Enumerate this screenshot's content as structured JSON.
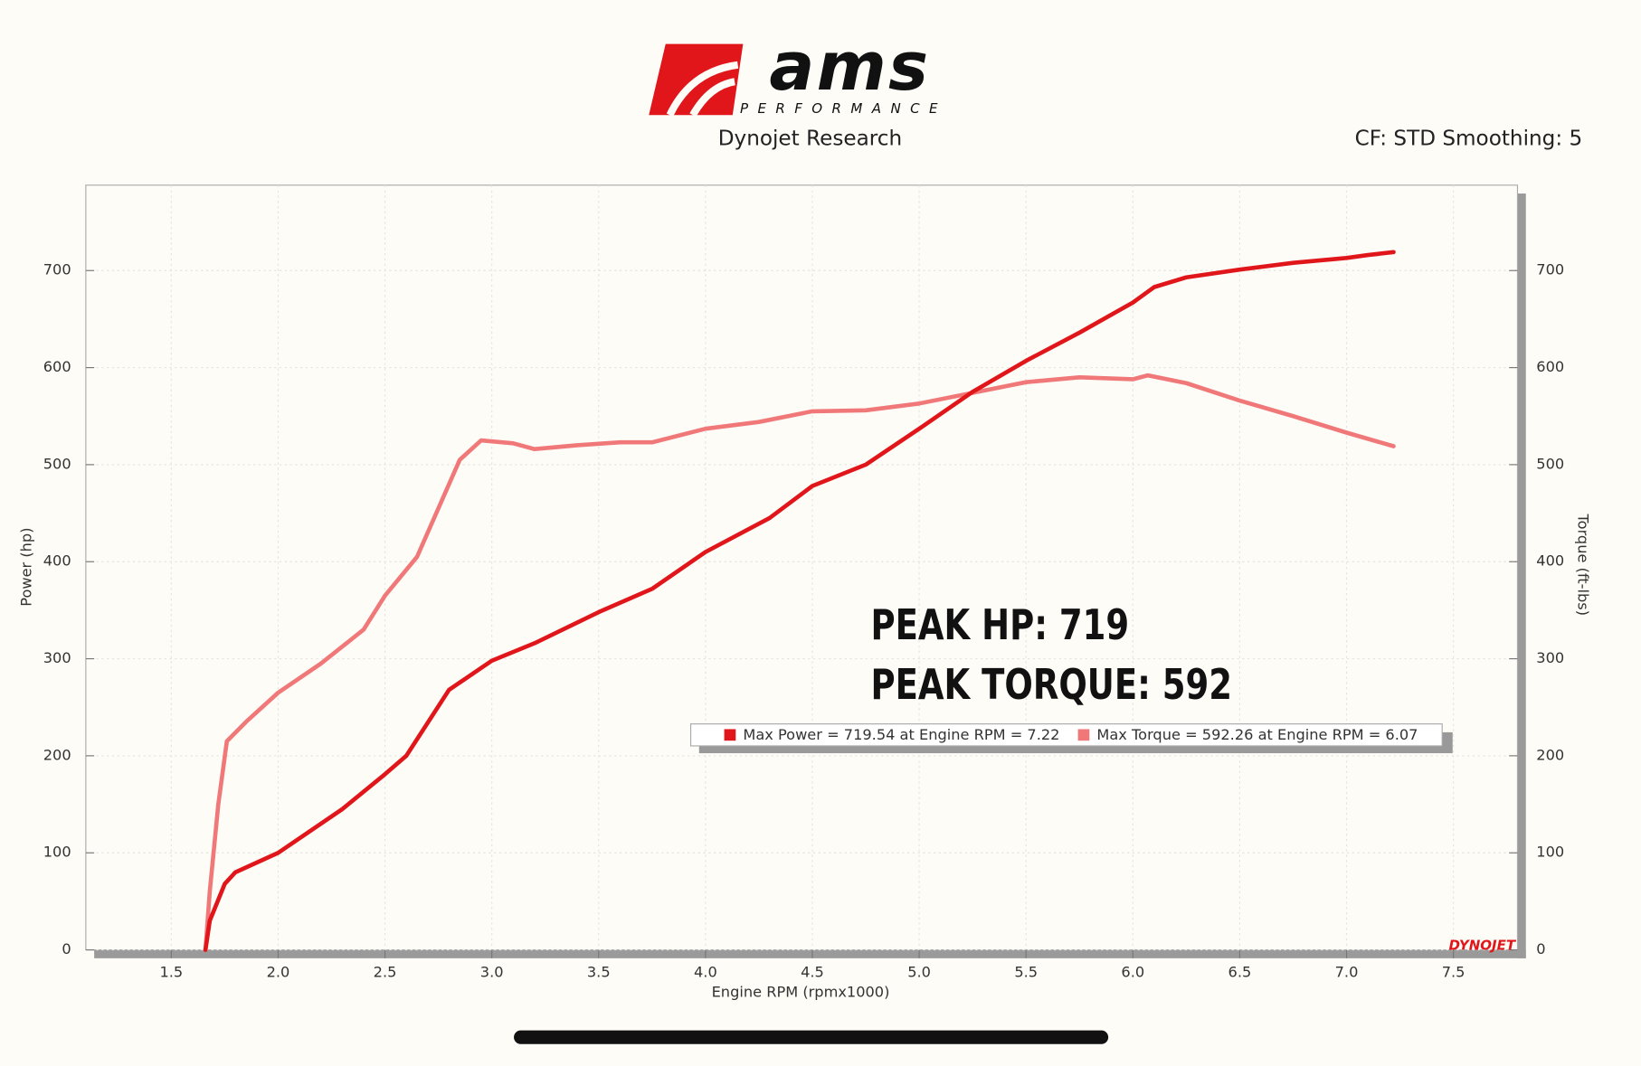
{
  "chart_data": {
    "type": "line",
    "brand": "ams",
    "brand_tagline": "PERFORMANCE",
    "title": "Dynojet Research",
    "header_right": "CF: STD Smoothing: 5",
    "xlabel": "Engine RPM (rpmx1000)",
    "ylabel": "Power (hp)",
    "y2label": "Torque (ft-lbs)",
    "annotations": [
      "PEAK HP: 719",
      "PEAK TORQUE: 592"
    ],
    "watermark": "DYNOJET",
    "xlim": [
      1.1,
      7.8
    ],
    "ylim": [
      0,
      788
    ],
    "y2lim": [
      0,
      788
    ],
    "xticks": [
      1.5,
      {
        "value": 2,
        "label": "2.0"
      },
      2.5,
      {
        "value": 3,
        "label": "3.0"
      },
      3.5,
      {
        "value": 4,
        "label": "4.0"
      },
      4.5,
      {
        "value": 5,
        "label": "5.0"
      },
      5.5,
      {
        "value": 6,
        "label": "6.0"
      },
      6.5,
      {
        "value": 7,
        "label": "7.0"
      },
      7.5
    ],
    "yticks": [
      0,
      100,
      200,
      300,
      400,
      500,
      600,
      700
    ],
    "y2ticks": [
      0,
      100,
      200,
      300,
      400,
      500,
      600,
      700
    ],
    "grid": true,
    "series": [
      {
        "name": "Max Power = 719.54 at Engine RPM = 7.22",
        "color": "#e0161b",
        "x": [
          1.66,
          1.68,
          1.75,
          1.8,
          2.0,
          2.3,
          2.5,
          2.6,
          2.8,
          3.0,
          3.2,
          3.5,
          3.75,
          4.0,
          4.3,
          4.5,
          4.75,
          5.0,
          5.25,
          5.5,
          5.75,
          6.0,
          6.1,
          6.25,
          6.5,
          6.75,
          7.0,
          7.1,
          7.22
        ],
        "values": [
          0,
          30,
          68,
          80,
          100,
          145,
          181,
          200,
          268,
          298,
          316,
          348,
          372,
          410,
          445,
          478,
          500,
          537,
          575,
          607,
          636,
          667,
          683,
          693,
          701,
          708,
          713,
          716,
          719
        ]
      },
      {
        "name": "Max Torque = 592.26 at Engine RPM = 6.07",
        "color": "#f07878",
        "axis": "y2",
        "x": [
          1.66,
          1.68,
          1.72,
          1.76,
          1.85,
          2.0,
          2.2,
          2.4,
          2.5,
          2.65,
          2.75,
          2.85,
          2.95,
          3.1,
          3.2,
          3.4,
          3.6,
          3.75,
          4.0,
          4.25,
          4.5,
          4.75,
          5.0,
          5.25,
          5.5,
          5.75,
          6.0,
          6.07,
          6.25,
          6.5,
          6.75,
          7.0,
          7.22
        ],
        "values": [
          0,
          60,
          150,
          215,
          235,
          265,
          295,
          330,
          365,
          405,
          455,
          505,
          525,
          522,
          516,
          520,
          523,
          523,
          537,
          544,
          555,
          556,
          563,
          574,
          585,
          590,
          588,
          592,
          584,
          566,
          550,
          533,
          519
        ]
      }
    ]
  }
}
